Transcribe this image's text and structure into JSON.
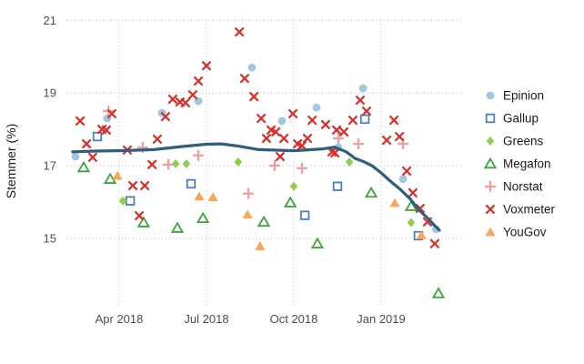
{
  "chart_data": {
    "type": "scatter",
    "title": "",
    "xlabel": "",
    "ylabel": "Stemmer (%)",
    "grid": "dotted",
    "legend_position": "right",
    "x_axis": {
      "unit": "months since 2018-01-01 (3 = Apr 2018, 12 = Jan 2019)",
      "range": [
        1.2,
        14.8
      ],
      "ticks": [
        {
          "value": 3,
          "label": "Apr 2018"
        },
        {
          "value": 6,
          "label": "Jul 2018"
        },
        {
          "value": 9,
          "label": "Oct 2018"
        },
        {
          "value": 12,
          "label": "Jan 2019"
        }
      ]
    },
    "y_axis": {
      "unit": "percent",
      "range": [
        13.0,
        21.3
      ],
      "ticks": [
        {
          "value": 15,
          "label": "15"
        },
        {
          "value": 17,
          "label": "17"
        },
        {
          "value": 19,
          "label": "19"
        },
        {
          "value": 21,
          "label": "21"
        }
      ]
    },
    "series": [
      {
        "name": "Epinion",
        "marker": "circle-filled",
        "color": "#9ec9e2",
        "points": [
          [
            1.5,
            17.25
          ],
          [
            2.59,
            18.3
          ],
          [
            4.47,
            18.45
          ],
          [
            5.72,
            18.78
          ],
          [
            7.56,
            19.7
          ],
          [
            8.59,
            18.23
          ],
          [
            9.78,
            18.6
          ],
          [
            10.53,
            17.5
          ],
          [
            11.38,
            19.13
          ],
          [
            12.75,
            16.63
          ],
          [
            13.88,
            15.25
          ]
        ]
      },
      {
        "name": "Gallup",
        "marker": "square-open",
        "color": "#4a80bd",
        "points": [
          [
            2.25,
            17.8
          ],
          [
            3.38,
            16.03
          ],
          [
            5.47,
            16.5
          ],
          [
            9.38,
            15.63
          ],
          [
            10.5,
            16.43
          ],
          [
            11.44,
            18.28
          ],
          [
            13.28,
            15.07
          ]
        ]
      },
      {
        "name": "Greens",
        "marker": "diamond-filled",
        "color": "#8ecf4d",
        "points": [
          [
            3.13,
            16.03
          ],
          [
            4.94,
            17.05
          ],
          [
            5.31,
            17.05
          ],
          [
            7.09,
            17.1
          ],
          [
            9.0,
            16.43
          ],
          [
            10.91,
            17.1
          ],
          [
            13.03,
            15.43
          ]
        ]
      },
      {
        "name": "Megafon",
        "marker": "triangle-open",
        "color": "#39a639",
        "points": [
          [
            1.78,
            16.95
          ],
          [
            2.69,
            16.63
          ],
          [
            3.84,
            15.43
          ],
          [
            5.0,
            15.28
          ],
          [
            5.88,
            15.55
          ],
          [
            7.97,
            15.45
          ],
          [
            8.88,
            15.98
          ],
          [
            9.81,
            14.85
          ],
          [
            11.66,
            16.25
          ],
          [
            13.03,
            15.88
          ],
          [
            13.97,
            13.48
          ]
        ]
      },
      {
        "name": "Norstat",
        "marker": "plus",
        "color": "#f59b9b",
        "points": [
          [
            2.63,
            18.5
          ],
          [
            3.81,
            17.5
          ],
          [
            4.69,
            17.03
          ],
          [
            5.72,
            17.28
          ],
          [
            7.44,
            16.23
          ],
          [
            8.34,
            17.0
          ],
          [
            9.28,
            16.93
          ],
          [
            10.53,
            17.75
          ],
          [
            11.22,
            17.6
          ],
          [
            12.75,
            17.6
          ]
        ]
      },
      {
        "name": "Voxmeter",
        "marker": "x",
        "color": "#de2d26",
        "points": [
          [
            1.66,
            18.23
          ],
          [
            1.88,
            17.6
          ],
          [
            2.09,
            17.23
          ],
          [
            2.41,
            18.0
          ],
          [
            2.56,
            17.98
          ],
          [
            2.75,
            18.43
          ],
          [
            3.28,
            17.43
          ],
          [
            3.47,
            16.45
          ],
          [
            3.69,
            15.62
          ],
          [
            3.88,
            16.45
          ],
          [
            4.13,
            17.03
          ],
          [
            4.31,
            17.73
          ],
          [
            4.59,
            18.35
          ],
          [
            4.84,
            18.83
          ],
          [
            5.09,
            18.75
          ],
          [
            5.28,
            18.73
          ],
          [
            5.53,
            18.95
          ],
          [
            5.72,
            19.33
          ],
          [
            6.0,
            19.75
          ],
          [
            7.13,
            20.68
          ],
          [
            7.31,
            19.4
          ],
          [
            7.63,
            18.9
          ],
          [
            7.88,
            18.3
          ],
          [
            8.06,
            17.75
          ],
          [
            8.22,
            17.98
          ],
          [
            8.38,
            17.93
          ],
          [
            8.53,
            17.25
          ],
          [
            8.66,
            17.75
          ],
          [
            8.97,
            18.43
          ],
          [
            9.13,
            17.6
          ],
          [
            9.28,
            17.55
          ],
          [
            9.47,
            17.75
          ],
          [
            9.63,
            18.25
          ],
          [
            10.09,
            18.13
          ],
          [
            10.31,
            17.38
          ],
          [
            10.41,
            17.35
          ],
          [
            10.47,
            17.98
          ],
          [
            10.72,
            17.93
          ],
          [
            11.03,
            18.25
          ],
          [
            11.28,
            18.8
          ],
          [
            11.5,
            18.5
          ],
          [
            12.19,
            17.7
          ],
          [
            12.44,
            18.25
          ],
          [
            12.63,
            17.8
          ],
          [
            12.88,
            16.85
          ],
          [
            13.09,
            16.25
          ],
          [
            13.34,
            15.82
          ],
          [
            13.59,
            15.45
          ],
          [
            13.84,
            14.85
          ]
        ]
      },
      {
        "name": "YouGov",
        "marker": "triangle-filled",
        "color": "#f9a65a",
        "points": [
          [
            2.94,
            16.72
          ],
          [
            5.75,
            16.15
          ],
          [
            6.22,
            16.13
          ],
          [
            7.41,
            15.65
          ],
          [
            7.84,
            14.78
          ],
          [
            12.47,
            15.97
          ],
          [
            13.38,
            15.08
          ]
        ]
      }
    ],
    "trend_line": {
      "name": "smoothed-trend",
      "color": "#2f5f7f",
      "stroke_width": 3.2,
      "points": [
        [
          1.4,
          17.38
        ],
        [
          2.2,
          17.4
        ],
        [
          3.0,
          17.41
        ],
        [
          4.2,
          17.44
        ],
        [
          5.2,
          17.53
        ],
        [
          6.0,
          17.59
        ],
        [
          6.5,
          17.6
        ],
        [
          7.0,
          17.55
        ],
        [
          7.8,
          17.44
        ],
        [
          9.0,
          17.41
        ],
        [
          10.0,
          17.46
        ],
        [
          10.4,
          17.51
        ],
        [
          10.8,
          17.38
        ],
        [
          11.1,
          17.2
        ],
        [
          11.4,
          17.11
        ],
        [
          11.7,
          16.99
        ],
        [
          12.0,
          16.8
        ],
        [
          12.35,
          16.55
        ],
        [
          12.65,
          16.35
        ],
        [
          13.0,
          16.08
        ],
        [
          13.3,
          15.78
        ],
        [
          13.6,
          15.55
        ],
        [
          13.8,
          15.38
        ],
        [
          14.0,
          15.22
        ]
      ]
    }
  },
  "colors": {
    "background": "#ffffff",
    "grid": "#bdbdbd",
    "tick_label": "#4d4d4d",
    "axis_title": "#1a1a1a",
    "legend_text": "#1a1a1a"
  }
}
